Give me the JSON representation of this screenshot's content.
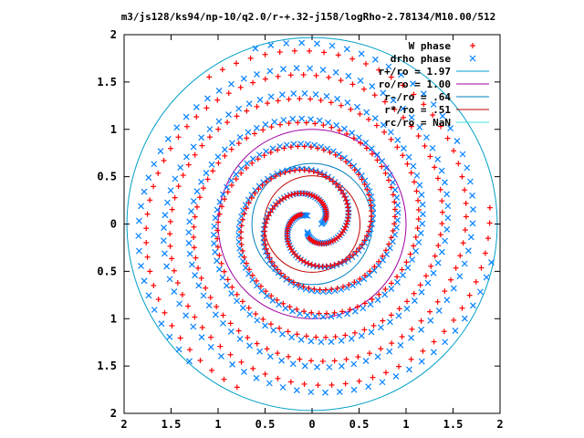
{
  "chart_data": {
    "type": "scatter",
    "title": "m3/js128/ks94/np-10/q2.0/r-+.32-j158/logRho-2.78134/M10.00/512",
    "xlim": [
      -2,
      2
    ],
    "ylim": [
      -2,
      2
    ],
    "x_ticks": [
      "2",
      "1.5",
      "1",
      "0.5",
      "0",
      "0.5",
      "1",
      "1.5",
      "2"
    ],
    "y_ticks": [
      "2",
      "1.5",
      "1",
      "0.5",
      "0",
      "0.5",
      "1",
      "1.5",
      "2"
    ],
    "x_tick_values": [
      -2,
      -1.5,
      -1,
      -0.5,
      0,
      0.5,
      1,
      1.5,
      2
    ],
    "y_tick_values": [
      2,
      1.5,
      1,
      0.5,
      0,
      -0.5,
      -1,
      -1.5,
      -2
    ],
    "legend_position": "top-right",
    "series": [
      {
        "name": "W phase",
        "marker": "+",
        "color": "#ff0000"
      },
      {
        "name": "drho phase",
        "marker": "x",
        "color": "#0080ff"
      }
    ],
    "circles": [
      {
        "name": "r+/ro = 1.97",
        "r": 1.97,
        "color": "#00a0c8"
      },
      {
        "name": "ro/ro = 1.00",
        "r": 1.0,
        "color": "#a000a0"
      },
      {
        "name": "r-/ro = .64",
        "r": 0.64,
        "color": "#0080c0"
      },
      {
        "name": "r*/ro = .51",
        "r": 0.51,
        "color": "#c00000"
      },
      {
        "name": "rc/ro = NaN",
        "r": null,
        "color": "#40e0e0"
      }
    ],
    "spiral_arms": [
      {
        "series": "drho phase",
        "turns": 2.3,
        "r_start": 0.1,
        "r_end": 1.95,
        "phase": 0.0
      },
      {
        "series": "drho phase",
        "turns": 2.3,
        "r_start": 0.1,
        "r_end": 1.95,
        "phase": 2.094
      },
      {
        "series": "drho phase",
        "turns": 2.3,
        "r_start": 0.1,
        "r_end": 1.95,
        "phase": 4.189
      },
      {
        "series": "W phase",
        "turns": 2.3,
        "r_start": 0.15,
        "r_end": 1.9,
        "phase": 0.3
      },
      {
        "series": "W phase",
        "turns": 2.3,
        "r_start": 0.15,
        "r_end": 1.9,
        "phase": 2.394
      },
      {
        "series": "W phase",
        "turns": 2.3,
        "r_start": 0.15,
        "r_end": 1.9,
        "phase": 4.489
      }
    ]
  }
}
